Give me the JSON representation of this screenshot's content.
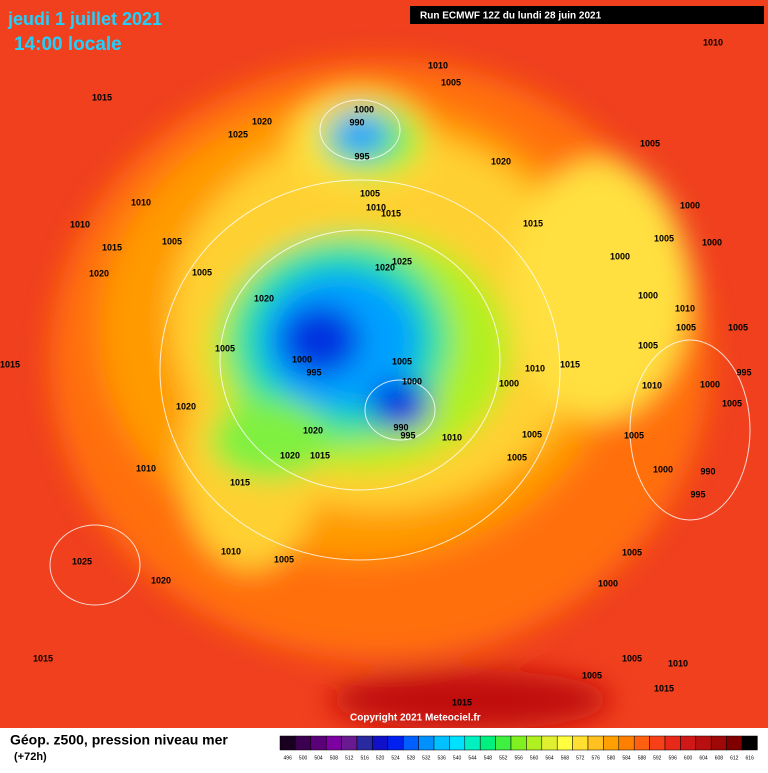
{
  "header": {
    "date": "jeudi 1 juillet 2021",
    "time": "14:00 locale",
    "run": "Run ECMWF 12Z du lundi 28 juin 2021"
  },
  "footer": {
    "title": "Géop. z500, pression niveau mer",
    "lead": "(+72h)",
    "copyright": "Copyright 2021 Meteociel.fr"
  },
  "legend": {
    "values": [
      496,
      500,
      504,
      508,
      512,
      516,
      520,
      524,
      528,
      532,
      536,
      540,
      544,
      548,
      552,
      556,
      560,
      564,
      568,
      572,
      576,
      580,
      584,
      588,
      592,
      596,
      600,
      604,
      608,
      612,
      616
    ],
    "colors": [
      "#1a0020",
      "#3c0050",
      "#5a0078",
      "#7d00a0",
      "#6a1a90",
      "#2a2aa0",
      "#1010c8",
      "#0020f0",
      "#0060ff",
      "#0090ff",
      "#00c0ff",
      "#00e0ff",
      "#00f0c0",
      "#00f080",
      "#40f040",
      "#80f020",
      "#b0f020",
      "#e0f030",
      "#ffff40",
      "#ffe030",
      "#ffc020",
      "#ffa000",
      "#ff8000",
      "#ff6010",
      "#f84018",
      "#e82818",
      "#d01818",
      "#b81010",
      "#a00808",
      "#800000",
      "#000000"
    ]
  },
  "pressure_labels": [
    1010,
    1010,
    1005,
    1015,
    1000,
    990,
    1025,
    1020,
    1005,
    995,
    1020,
    1005,
    1010,
    1015,
    1010,
    1000,
    1010,
    1015,
    1005,
    1015,
    1005,
    1000,
    1025,
    1020,
    1020,
    1005,
    1000,
    1000,
    1020,
    1010,
    1005,
    1005,
    1005,
    1000,
    995,
    1005,
    1010,
    1015,
    1005,
    1000,
    1000,
    1015,
    1010,
    1000,
    995,
    1020,
    990,
    995,
    1005,
    1020,
    1010,
    1005,
    1005,
    1020,
    1015,
    1005,
    1010,
    1015,
    1000,
    990,
    995,
    1010,
    1005,
    1025,
    1020,
    1005,
    1000,
    1015,
    1005,
    1010,
    1005,
    1015,
    1015
  ]
}
